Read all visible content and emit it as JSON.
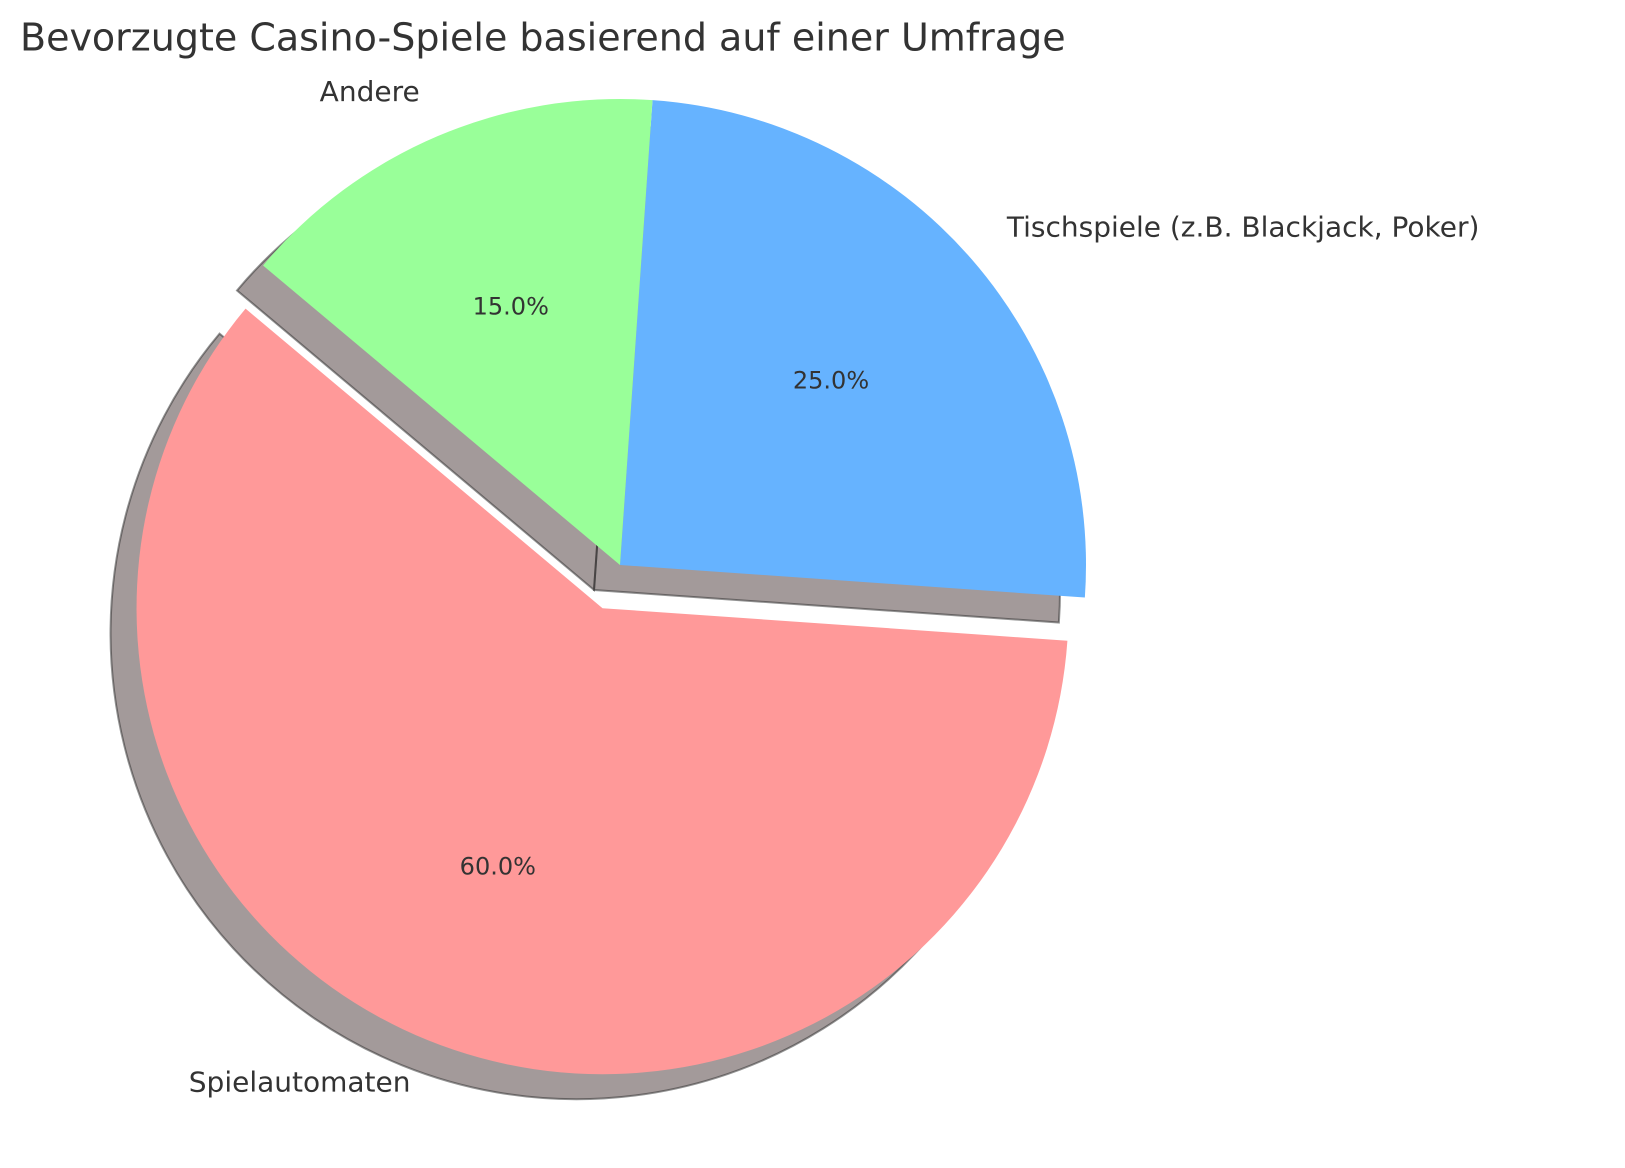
{
  "chart_data": {
    "type": "pie",
    "title": "Bevorzugte Casino-Spiele basierend auf einer Umfrage",
    "categories": [
      "Spielautomaten",
      "Tischspiele (z.B. Blackjack, Poker)",
      "Andere"
    ],
    "values": [
      60,
      25,
      15
    ],
    "value_labels": [
      "60.0%",
      "25.0%",
      "15.0%"
    ],
    "colors": [
      "#ff9999",
      "#66b3ff",
      "#99ff99"
    ]
  }
}
